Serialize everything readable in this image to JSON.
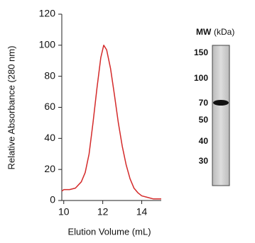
{
  "chart_data": {
    "type": "line",
    "x_label": "Elution Volume (mL)",
    "y_label": "Relative Absorbance (280 nm)",
    "series": [
      {
        "color": "#d42a2a",
        "x": [
          9.9,
          10,
          10.3,
          10.6,
          10.9,
          11.1,
          11.3,
          11.5,
          11.7,
          11.9,
          12.05,
          12.2,
          12.4,
          12.6,
          12.8,
          13.0,
          13.2,
          13.4,
          13.6,
          13.8,
          14.0,
          14.3,
          14.6,
          15
        ],
        "values": [
          6,
          7,
          7,
          8,
          12,
          18,
          30,
          50,
          72,
          92,
          100,
          97,
          85,
          68,
          50,
          35,
          23,
          14,
          8,
          5,
          3,
          2,
          1,
          1
        ]
      }
    ],
    "xlim": [
      9.9,
      15
    ],
    "ylim": [
      0,
      120
    ],
    "xticks": [
      10,
      12,
      14
    ],
    "yticks": [
      0,
      20,
      40,
      60,
      80,
      100,
      120
    ]
  },
  "gel": {
    "header_bold": "MW",
    "header_unit": "(kDa)",
    "markers": [
      "150",
      "100",
      "70",
      "50",
      "40",
      "30"
    ]
  }
}
